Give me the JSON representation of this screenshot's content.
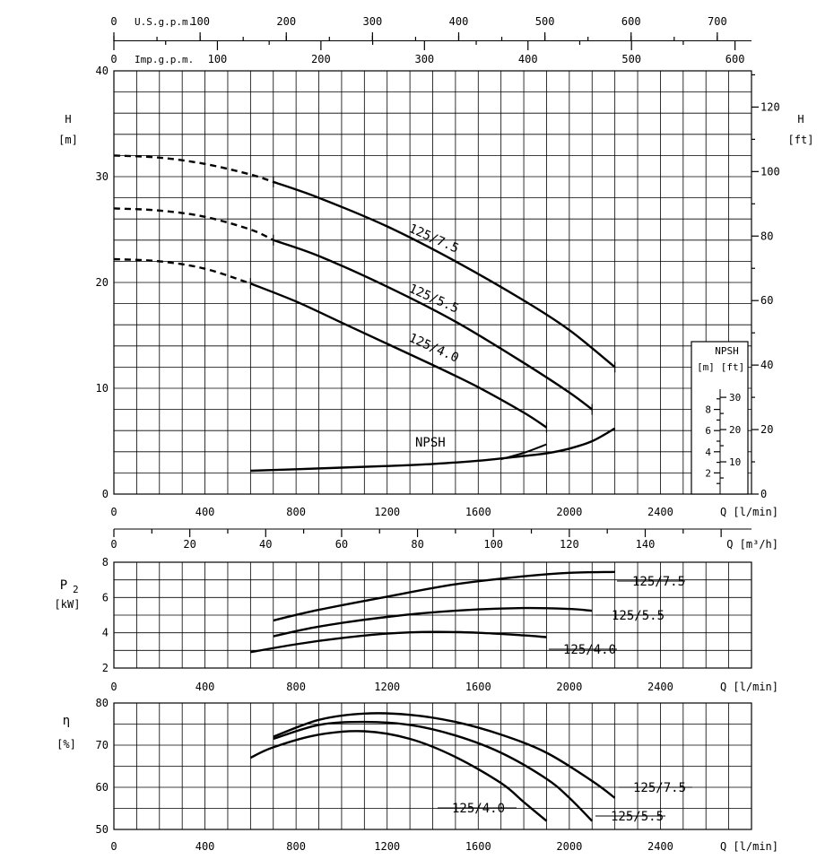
{
  "chart_data": [
    {
      "id": "head",
      "type": "line",
      "ylabel": "H",
      "yunit": "[m]",
      "y2label": "H",
      "y2unit": "[ft]",
      "xlabel": "Q [l/min]",
      "xlim": [
        0,
        2800
      ],
      "ylim": [
        0,
        40
      ],
      "xticks": [
        0,
        400,
        800,
        1200,
        1600,
        2000,
        2400
      ],
      "yticks": [
        0,
        10,
        20,
        30,
        40
      ],
      "y2ticks": [
        0,
        20,
        40,
        60,
        80,
        100,
        120
      ],
      "x2": {
        "label": "Q [m³/h]",
        "ticks": [
          0,
          20,
          40,
          60,
          80,
          100,
          120,
          140
        ]
      },
      "top_axes": [
        {
          "label": "U.S.g.p.m.",
          "ticks": [
            0,
            100,
            200,
            300,
            400,
            500,
            600,
            700
          ]
        },
        {
          "label": "Imp.g.p.m.",
          "ticks": [
            0,
            100,
            200,
            300,
            400,
            500,
            600
          ]
        }
      ],
      "series": [
        {
          "name": "125/7.5",
          "dashed_until": 700,
          "x": [
            0,
            200,
            400,
            600,
            700,
            900,
            1200,
            1500,
            1800,
            2000,
            2200
          ],
          "y": [
            32,
            31.8,
            31.2,
            30.2,
            29.5,
            28.0,
            25.3,
            22.0,
            18.3,
            15.5,
            12.0
          ]
        },
        {
          "name": "125/5.5",
          "dashed_until": 700,
          "x": [
            0,
            200,
            400,
            600,
            700,
            900,
            1200,
            1500,
            1800,
            2000,
            2100
          ],
          "y": [
            27,
            26.8,
            26.2,
            25.0,
            24.0,
            22.5,
            19.6,
            16.3,
            12.4,
            9.6,
            8.0
          ]
        },
        {
          "name": "125/4.0",
          "dashed_until": 600,
          "x": [
            0,
            200,
            400,
            600,
            800,
            1000,
            1200,
            1400,
            1600,
            1800,
            1900
          ],
          "y": [
            22.2,
            22.0,
            21.3,
            19.9,
            18.2,
            16.2,
            14.2,
            12.2,
            10.1,
            7.7,
            6.3
          ]
        }
      ],
      "npsh": {
        "name": "NPSH",
        "x": [
          600,
          800,
          1000,
          1200,
          1400,
          1600,
          1800,
          1900,
          2000,
          2100,
          2200
        ],
        "y": [
          2.2,
          2.35,
          2.5,
          2.65,
          2.85,
          3.15,
          3.6,
          3.85,
          4.3,
          5.0,
          6.2
        ],
        "branch": {
          "x": [
            1700,
            1800,
            1900
          ],
          "y": [
            3.3,
            3.9,
            4.7
          ]
        }
      },
      "npsh_box": {
        "title": "NPSH",
        "units": [
          "[m]",
          "[ft]"
        ],
        "m_ticks": [
          2,
          4,
          6,
          8
        ],
        "ft_ticks": [
          10,
          20,
          30
        ]
      }
    },
    {
      "id": "power",
      "type": "line",
      "ylabel": "P",
      "ylabel_sub": "2",
      "yunit": "[kW]",
      "xlabel": "Q [l/min]",
      "xlim": [
        0,
        2800
      ],
      "ylim": [
        2,
        8
      ],
      "xticks": [
        0,
        400,
        800,
        1200,
        1600,
        2000,
        2400
      ],
      "yticks": [
        2,
        4,
        6,
        8
      ],
      "series": [
        {
          "name": "125/7.5",
          "x": [
            700,
            900,
            1200,
            1500,
            1800,
            2000,
            2200
          ],
          "y": [
            4.7,
            5.3,
            6.05,
            6.75,
            7.2,
            7.4,
            7.45
          ]
        },
        {
          "name": "125/5.5",
          "x": [
            700,
            900,
            1200,
            1500,
            1800,
            2000,
            2100
          ],
          "y": [
            3.8,
            4.35,
            4.9,
            5.25,
            5.4,
            5.35,
            5.25
          ]
        },
        {
          "name": "125/4.0",
          "x": [
            600,
            800,
            1000,
            1200,
            1400,
            1600,
            1800,
            1900
          ],
          "y": [
            2.9,
            3.35,
            3.7,
            3.95,
            4.05,
            4.0,
            3.85,
            3.75
          ]
        }
      ]
    },
    {
      "id": "efficiency",
      "type": "line",
      "ylabel": "η",
      "yunit": "[%]",
      "xlabel": "Q [l/min]",
      "xlim": [
        0,
        2800
      ],
      "ylim": [
        50,
        80
      ],
      "xticks": [
        0,
        400,
        800,
        1200,
        1600,
        2000,
        2400
      ],
      "yticks": [
        50,
        60,
        70,
        80
      ],
      "series": [
        {
          "name": "125/7.5",
          "x": [
            700,
            900,
            1100,
            1300,
            1500,
            1700,
            1900,
            2100,
            2200
          ],
          "y": [
            72,
            76,
            77.5,
            77.2,
            75.5,
            72.5,
            68.2,
            61.5,
            57.5
          ]
        },
        {
          "name": "125/5.5",
          "x": [
            700,
            900,
            1100,
            1300,
            1500,
            1700,
            1900,
            2000,
            2100
          ],
          "y": [
            71.5,
            74.8,
            75.5,
            74.8,
            72.3,
            68.2,
            62,
            57.5,
            52
          ]
        },
        {
          "name": "125/4.0",
          "x": [
            600,
            700,
            900,
            1100,
            1300,
            1500,
            1700,
            1800,
            1900
          ],
          "y": [
            67,
            69.5,
            72.5,
            73.3,
            71.5,
            67.2,
            61,
            56.5,
            52
          ]
        }
      ]
    }
  ]
}
